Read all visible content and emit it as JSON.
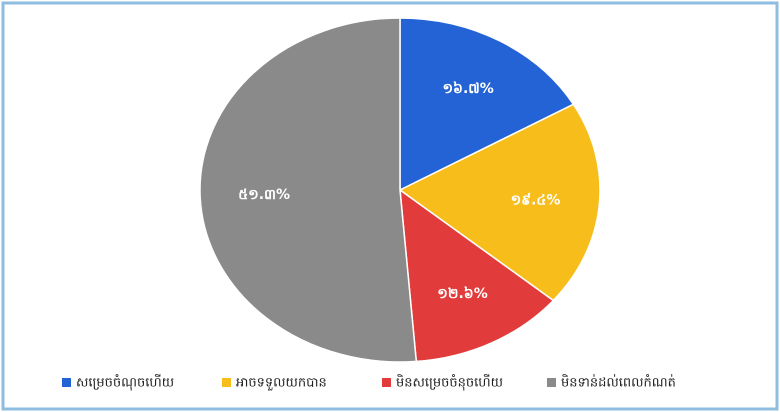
{
  "chart_data": {
    "type": "pie",
    "categories": [
      "សម្រេចចំណុចហើយ",
      "អាចទទួលយកបាន",
      "មិនសម្រេចចំនុចហើយ",
      "មិនទាន់ដល់ពេលកំណត់"
    ],
    "values": [
      16.7,
      19.4,
      12.6,
      51.3
    ],
    "value_labels": [
      "១៦.៧%",
      "១៩.៤%",
      "១២.៦%",
      "៥១.៣%"
    ],
    "colors": [
      "#2463d6",
      "#f7bd1b",
      "#e23b3b",
      "#8a8a8a"
    ],
    "legend": "bottom"
  }
}
